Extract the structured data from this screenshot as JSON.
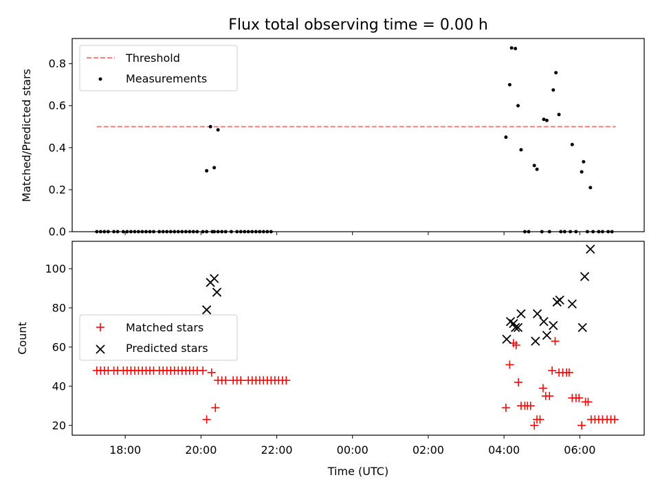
{
  "chart_data": [
    {
      "type": "scatter",
      "title": "Flux total observing time = 0.00 h",
      "ylabel": "Matched/Predicted stars",
      "xlabel": "",
      "x_unit": "hours since 00:00 UTC",
      "xlim": [
        -7.4,
        7.7
      ],
      "ylim": [
        0.0,
        0.92
      ],
      "yticks": [
        0.0,
        0.2,
        0.4,
        0.6,
        0.8
      ],
      "ytick_labels": [
        "0.0",
        "0.2",
        "0.4",
        "0.6",
        "0.8"
      ],
      "legend_position": "upper-left",
      "threshold": {
        "name": "Threshold",
        "value": 0.5,
        "x_range": [
          -6.75,
          6.95
        ],
        "color": "#ff7f7f",
        "style": "dashed"
      },
      "series": [
        {
          "name": "Measurements",
          "color": "#000000",
          "marker": "dot",
          "points": [
            [
              -6.75,
              0
            ],
            [
              -6.65,
              0
            ],
            [
              -6.55,
              0
            ],
            [
              -6.45,
              0
            ],
            [
              -6.3,
              0
            ],
            [
              -6.2,
              0
            ],
            [
              -6.05,
              0
            ],
            [
              -5.95,
              0
            ],
            [
              -5.85,
              0
            ],
            [
              -5.75,
              0
            ],
            [
              -5.65,
              0
            ],
            [
              -5.55,
              0
            ],
            [
              -5.45,
              0
            ],
            [
              -5.35,
              0
            ],
            [
              -5.25,
              0
            ],
            [
              -5.1,
              0
            ],
            [
              -5.0,
              0
            ],
            [
              -4.9,
              0
            ],
            [
              -4.8,
              0
            ],
            [
              -4.7,
              0
            ],
            [
              -4.6,
              0
            ],
            [
              -4.5,
              0
            ],
            [
              -4.4,
              0
            ],
            [
              -4.3,
              0
            ],
            [
              -4.2,
              0
            ],
            [
              -4.1,
              0
            ],
            [
              -3.95,
              0
            ],
            [
              -3.85,
              0
            ],
            [
              -3.75,
              0.5
            ],
            [
              -3.7,
              0
            ],
            [
              -3.65,
              0
            ],
            [
              -3.55,
              0
            ],
            [
              -3.45,
              0
            ],
            [
              -3.35,
              0
            ],
            [
              -3.2,
              0
            ],
            [
              -3.05,
              0
            ],
            [
              -2.95,
              0
            ],
            [
              -2.85,
              0
            ],
            [
              -2.75,
              0
            ],
            [
              -2.65,
              0
            ],
            [
              -2.55,
              0
            ],
            [
              -2.45,
              0
            ],
            [
              -2.35,
              0
            ],
            [
              -2.25,
              0
            ],
            [
              -2.15,
              0
            ],
            [
              -3.85,
              0.29
            ],
            [
              -3.65,
              0.305
            ],
            [
              -3.55,
              0.485
            ],
            [
              4.05,
              0.45
            ],
            [
              4.15,
              0.7
            ],
            [
              4.2,
              0.875
            ],
            [
              4.3,
              0.872
            ],
            [
              4.37,
              0.6
            ],
            [
              4.45,
              0.39
            ],
            [
              4.55,
              0
            ],
            [
              4.65,
              0
            ],
            [
              4.8,
              0.315
            ],
            [
              4.87,
              0.297
            ],
            [
              5.0,
              0
            ],
            [
              5.05,
              0.535
            ],
            [
              5.13,
              0.53
            ],
            [
              5.2,
              0
            ],
            [
              5.3,
              0.675
            ],
            [
              5.37,
              0.757
            ],
            [
              5.45,
              0.558
            ],
            [
              5.5,
              0
            ],
            [
              5.6,
              0
            ],
            [
              5.75,
              0
            ],
            [
              5.8,
              0.415
            ],
            [
              5.9,
              0
            ],
            [
              6.05,
              0.285
            ],
            [
              6.1,
              0.333
            ],
            [
              6.2,
              0
            ],
            [
              6.28,
              0.21
            ],
            [
              6.35,
              0
            ],
            [
              6.5,
              0
            ],
            [
              6.6,
              0
            ],
            [
              6.75,
              0
            ],
            [
              6.85,
              0
            ]
          ]
        }
      ]
    },
    {
      "type": "scatter",
      "title": "",
      "xlabel": "Time (UTC)",
      "ylabel": "Count",
      "x_unit": "hours since 00:00 UTC",
      "xlim": [
        -7.4,
        7.7
      ],
      "ylim": [
        15,
        114
      ],
      "xticks": [
        -6,
        -4,
        -2,
        0,
        2,
        4,
        6
      ],
      "xtick_labels": [
        "18:00",
        "20:00",
        "22:00",
        "00:00",
        "02:00",
        "04:00",
        "06:00"
      ],
      "yticks": [
        20,
        40,
        60,
        80,
        100
      ],
      "ytick_labels": [
        "20",
        "40",
        "60",
        "80",
        "100"
      ],
      "legend_position": "center-left",
      "series": [
        {
          "name": "Matched stars",
          "color": "#ff0000",
          "marker": "plus",
          "points": [
            [
              -6.75,
              48
            ],
            [
              -6.65,
              48
            ],
            [
              -6.55,
              48
            ],
            [
              -6.45,
              48
            ],
            [
              -6.3,
              48
            ],
            [
              -6.2,
              48
            ],
            [
              -6.05,
              48
            ],
            [
              -5.95,
              48
            ],
            [
              -5.85,
              48
            ],
            [
              -5.75,
              48
            ],
            [
              -5.65,
              48
            ],
            [
              -5.55,
              48
            ],
            [
              -5.45,
              48
            ],
            [
              -5.35,
              48
            ],
            [
              -5.25,
              48
            ],
            [
              -5.1,
              48
            ],
            [
              -5.0,
              48
            ],
            [
              -4.9,
              48
            ],
            [
              -4.8,
              48
            ],
            [
              -4.7,
              48
            ],
            [
              -4.6,
              48
            ],
            [
              -4.5,
              48
            ],
            [
              -4.4,
              48
            ],
            [
              -4.3,
              48
            ],
            [
              -4.2,
              48
            ],
            [
              -4.1,
              48
            ],
            [
              -3.95,
              48
            ],
            [
              -3.85,
              23
            ],
            [
              -3.72,
              47
            ],
            [
              -3.62,
              29
            ],
            [
              -3.55,
              43
            ],
            [
              -3.45,
              43
            ],
            [
              -3.35,
              43
            ],
            [
              -3.15,
              43
            ],
            [
              -3.05,
              43
            ],
            [
              -2.95,
              43
            ],
            [
              -2.75,
              43
            ],
            [
              -2.65,
              43
            ],
            [
              -2.55,
              43
            ],
            [
              -2.45,
              43
            ],
            [
              -2.35,
              43
            ],
            [
              -2.25,
              43
            ],
            [
              -2.15,
              43
            ],
            [
              -2.05,
              43
            ],
            [
              -1.95,
              43
            ],
            [
              -1.85,
              43
            ],
            [
              -1.75,
              43
            ],
            [
              4.05,
              29
            ],
            [
              4.15,
              51
            ],
            [
              4.25,
              62
            ],
            [
              4.32,
              61
            ],
            [
              4.38,
              42
            ],
            [
              4.45,
              30
            ],
            [
              4.55,
              30
            ],
            [
              4.62,
              30
            ],
            [
              4.7,
              30
            ],
            [
              4.8,
              20
            ],
            [
              4.87,
              23
            ],
            [
              4.95,
              23
            ],
            [
              5.03,
              39
            ],
            [
              5.1,
              35
            ],
            [
              5.2,
              35
            ],
            [
              5.27,
              48
            ],
            [
              5.35,
              63
            ],
            [
              5.45,
              47
            ],
            [
              5.55,
              47
            ],
            [
              5.65,
              47
            ],
            [
              5.72,
              47
            ],
            [
              5.8,
              34
            ],
            [
              5.9,
              34
            ],
            [
              5.98,
              34
            ],
            [
              6.05,
              20
            ],
            [
              6.15,
              32
            ],
            [
              6.22,
              32
            ],
            [
              6.3,
              23
            ],
            [
              6.4,
              23
            ],
            [
              6.5,
              23
            ],
            [
              6.6,
              23
            ],
            [
              6.72,
              23
            ],
            [
              6.82,
              23
            ],
            [
              6.92,
              23
            ]
          ]
        },
        {
          "name": "Predicted stars",
          "color": "#000000",
          "marker": "x",
          "points": [
            [
              -3.85,
              79
            ],
            [
              -3.75,
              93
            ],
            [
              -3.65,
              95
            ],
            [
              -3.58,
              88
            ],
            [
              4.07,
              64
            ],
            [
              4.17,
              73
            ],
            [
              4.25,
              72
            ],
            [
              4.3,
              70
            ],
            [
              4.37,
              70
            ],
            [
              4.45,
              77
            ],
            [
              4.83,
              63
            ],
            [
              4.88,
              77
            ],
            [
              5.05,
              73
            ],
            [
              5.13,
              66
            ],
            [
              5.3,
              71
            ],
            [
              5.4,
              83
            ],
            [
              5.47,
              84
            ],
            [
              5.8,
              82
            ],
            [
              6.07,
              70
            ],
            [
              6.13,
              96
            ],
            [
              6.28,
              110
            ]
          ]
        }
      ]
    }
  ]
}
